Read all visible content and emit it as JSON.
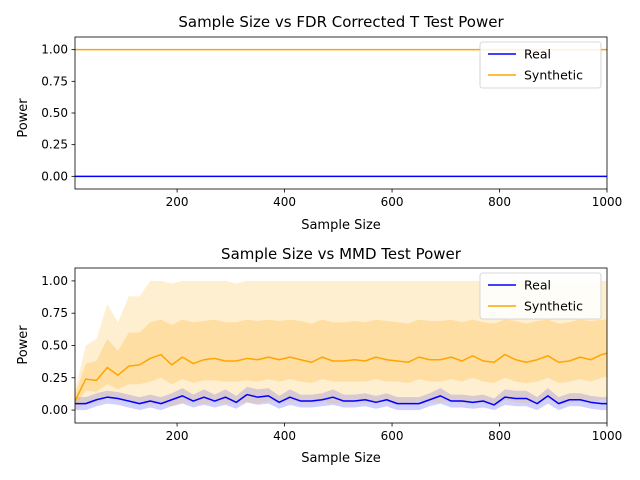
{
  "colors": {
    "real": "#0000ff",
    "synthetic": "#ffa500"
  },
  "chart_data": [
    {
      "type": "line",
      "title": "Sample Size vs FDR Corrected T Test Power",
      "xlabel": "Sample Size",
      "ylabel": "Power",
      "xlim": [
        10,
        1000
      ],
      "ylim": [
        -0.1,
        1.1
      ],
      "xticks": [
        200,
        400,
        600,
        800,
        1000
      ],
      "yticks": [
        "0.00",
        "0.25",
        "0.50",
        "0.75",
        "1.00"
      ],
      "legend": {
        "position": "upper-right",
        "entries": [
          "Real",
          "Synthetic"
        ]
      },
      "x": [
        10,
        1000
      ],
      "series": [
        {
          "name": "Real",
          "color": "#0000ff",
          "values": [
            0.0,
            0.0
          ]
        },
        {
          "name": "Synthetic",
          "color": "#ffa500",
          "values": [
            1.0,
            1.0
          ]
        }
      ]
    },
    {
      "type": "line",
      "title": "Sample Size vs MMD Test Power",
      "xlabel": "Sample Size",
      "ylabel": "Power",
      "xlim": [
        10,
        1000
      ],
      "ylim": [
        -0.1,
        1.1
      ],
      "xticks": [
        200,
        400,
        600,
        800,
        1000
      ],
      "yticks": [
        "0.00",
        "0.25",
        "0.50",
        "0.75",
        "1.00"
      ],
      "legend": {
        "position": "upper-right",
        "entries": [
          "Real",
          "Synthetic"
        ]
      },
      "x": [
        10,
        30,
        50,
        70,
        90,
        110,
        130,
        150,
        170,
        190,
        210,
        230,
        250,
        270,
        290,
        310,
        330,
        350,
        370,
        390,
        410,
        430,
        450,
        470,
        490,
        510,
        530,
        550,
        570,
        590,
        610,
        630,
        650,
        670,
        690,
        710,
        730,
        750,
        770,
        790,
        810,
        830,
        850,
        870,
        890,
        910,
        930,
        950,
        970,
        990,
        1000
      ],
      "series": [
        {
          "name": "Real",
          "color": "#0000ff",
          "values": [
            0.05,
            0.05,
            0.08,
            0.1,
            0.09,
            0.07,
            0.05,
            0.07,
            0.05,
            0.08,
            0.11,
            0.07,
            0.1,
            0.07,
            0.1,
            0.06,
            0.12,
            0.1,
            0.11,
            0.06,
            0.1,
            0.07,
            0.07,
            0.08,
            0.1,
            0.07,
            0.07,
            0.08,
            0.06,
            0.08,
            0.05,
            0.05,
            0.05,
            0.08,
            0.11,
            0.07,
            0.07,
            0.06,
            0.07,
            0.04,
            0.1,
            0.09,
            0.09,
            0.05,
            0.11,
            0.05,
            0.08,
            0.08,
            0.06,
            0.05,
            0.05
          ],
          "band": {
            "lower": [
              0.0,
              0.0,
              0.03,
              0.05,
              0.04,
              0.02,
              0.0,
              0.02,
              0.0,
              0.03,
              0.05,
              0.02,
              0.04,
              0.02,
              0.04,
              0.01,
              0.06,
              0.04,
              0.05,
              0.01,
              0.04,
              0.02,
              0.02,
              0.03,
              0.04,
              0.02,
              0.02,
              0.03,
              0.01,
              0.03,
              0.0,
              0.0,
              0.0,
              0.03,
              0.05,
              0.02,
              0.02,
              0.01,
              0.02,
              0.0,
              0.04,
              0.03,
              0.03,
              0.0,
              0.05,
              0.0,
              0.03,
              0.03,
              0.01,
              0.0,
              0.0
            ],
            "upper": [
              0.1,
              0.1,
              0.13,
              0.15,
              0.14,
              0.12,
              0.1,
              0.12,
              0.1,
              0.13,
              0.17,
              0.12,
              0.16,
              0.12,
              0.16,
              0.11,
              0.18,
              0.16,
              0.17,
              0.11,
              0.16,
              0.12,
              0.12,
              0.13,
              0.16,
              0.12,
              0.12,
              0.13,
              0.11,
              0.13,
              0.1,
              0.1,
              0.1,
              0.13,
              0.17,
              0.12,
              0.12,
              0.11,
              0.12,
              0.09,
              0.16,
              0.15,
              0.15,
              0.1,
              0.17,
              0.1,
              0.13,
              0.13,
              0.11,
              0.1,
              0.1
            ]
          }
        },
        {
          "name": "Synthetic",
          "color": "#ffa500",
          "values": [
            0.07,
            0.24,
            0.23,
            0.33,
            0.27,
            0.34,
            0.35,
            0.4,
            0.43,
            0.35,
            0.41,
            0.36,
            0.39,
            0.4,
            0.38,
            0.38,
            0.4,
            0.39,
            0.41,
            0.39,
            0.41,
            0.39,
            0.37,
            0.41,
            0.38,
            0.38,
            0.39,
            0.38,
            0.41,
            0.39,
            0.38,
            0.37,
            0.41,
            0.39,
            0.39,
            0.41,
            0.38,
            0.42,
            0.38,
            0.37,
            0.43,
            0.39,
            0.37,
            0.39,
            0.42,
            0.37,
            0.38,
            0.41,
            0.39,
            0.43,
            0.44
          ],
          "band": {
            "lower": [
              0.0,
              0.05,
              0.05,
              0.1,
              0.07,
              0.08,
              0.05,
              0.04,
              0.05,
              0.03,
              0.06,
              0.05,
              0.05,
              0.06,
              0.05,
              0.05,
              0.06,
              0.05,
              0.07,
              0.06,
              0.07,
              0.06,
              0.05,
              0.07,
              0.05,
              0.05,
              0.06,
              0.05,
              0.07,
              0.06,
              0.05,
              0.05,
              0.07,
              0.06,
              0.06,
              0.07,
              0.05,
              0.08,
              0.05,
              0.05,
              0.08,
              0.06,
              0.05,
              0.06,
              0.08,
              0.05,
              0.05,
              0.07,
              0.06,
              0.08,
              0.09
            ],
            "upper": [
              0.15,
              0.5,
              0.55,
              0.82,
              0.68,
              0.88,
              0.88,
              1.0,
              1.0,
              0.98,
              1.0,
              1.0,
              1.0,
              1.0,
              1.0,
              0.98,
              1.0,
              1.0,
              1.0,
              1.0,
              1.0,
              1.0,
              1.0,
              1.0,
              1.0,
              1.0,
              1.0,
              1.0,
              1.0,
              1.0,
              1.0,
              1.0,
              1.0,
              1.0,
              1.0,
              1.0,
              1.0,
              1.0,
              1.0,
              1.0,
              1.0,
              1.0,
              1.0,
              1.0,
              1.0,
              1.0,
              1.0,
              1.0,
              1.0,
              1.0,
              1.0
            ]
          },
          "inner_band": {
            "lower": [
              0.03,
              0.15,
              0.14,
              0.2,
              0.16,
              0.2,
              0.2,
              0.22,
              0.25,
              0.2,
              0.24,
              0.21,
              0.23,
              0.23,
              0.22,
              0.22,
              0.23,
              0.22,
              0.24,
              0.22,
              0.24,
              0.22,
              0.21,
              0.24,
              0.22,
              0.22,
              0.22,
              0.22,
              0.24,
              0.22,
              0.22,
              0.21,
              0.24,
              0.22,
              0.22,
              0.24,
              0.22,
              0.25,
              0.22,
              0.21,
              0.25,
              0.22,
              0.21,
              0.22,
              0.25,
              0.21,
              0.22,
              0.24,
              0.22,
              0.25,
              0.26
            ],
            "upper": [
              0.12,
              0.36,
              0.38,
              0.55,
              0.46,
              0.6,
              0.6,
              0.68,
              0.7,
              0.66,
              0.7,
              0.68,
              0.69,
              0.7,
              0.68,
              0.68,
              0.7,
              0.69,
              0.7,
              0.69,
              0.7,
              0.69,
              0.67,
              0.7,
              0.68,
              0.68,
              0.69,
              0.68,
              0.7,
              0.69,
              0.68,
              0.67,
              0.7,
              0.69,
              0.69,
              0.7,
              0.68,
              0.7,
              0.68,
              0.67,
              0.7,
              0.69,
              0.67,
              0.69,
              0.7,
              0.67,
              0.68,
              0.7,
              0.69,
              0.7,
              0.7
            ]
          }
        }
      ]
    }
  ]
}
